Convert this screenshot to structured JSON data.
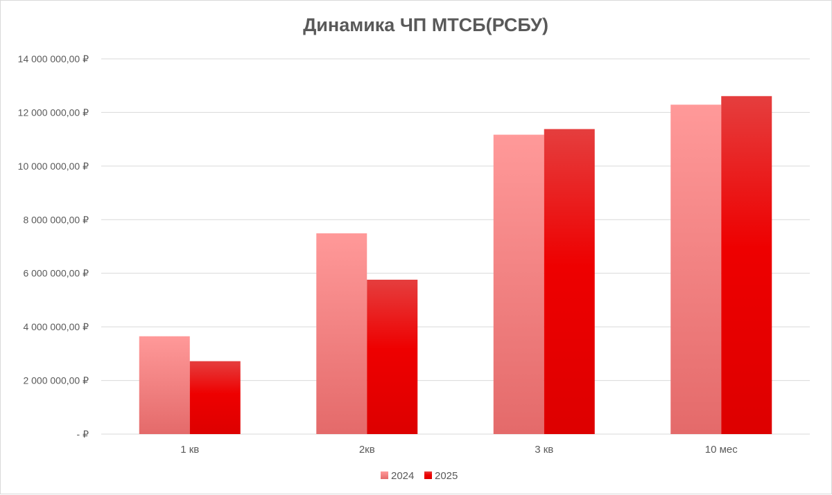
{
  "chart_data": {
    "type": "bar",
    "title": "Динамика ЧП МТСБ(РСБУ)",
    "xlabel": "",
    "ylabel": "",
    "categories": [
      "1 кв",
      "2кв",
      "3 кв",
      "10 мес"
    ],
    "series": [
      {
        "name": "2024",
        "values": [
          3650000,
          7490000,
          11170000,
          12290000
        ]
      },
      {
        "name": "2025",
        "values": [
          2720000,
          5760000,
          11380000,
          12610000
        ]
      }
    ],
    "ylim": [
      0,
      14000000
    ],
    "y_ticks": [
      {
        "value": 0,
        "label": "-  ₽"
      },
      {
        "value": 2000000,
        "label": "2 000 000,00 ₽"
      },
      {
        "value": 4000000,
        "label": "4 000 000,00 ₽"
      },
      {
        "value": 6000000,
        "label": "6 000 000,00 ₽"
      },
      {
        "value": 8000000,
        "label": "8 000 000,00 ₽"
      },
      {
        "value": 10000000,
        "label": "10 000 000,00 ₽"
      },
      {
        "value": 12000000,
        "label": "12 000 000,00 ₽"
      },
      {
        "value": 14000000,
        "label": "14 000 000,00 ₽"
      }
    ],
    "grid": true,
    "legend_position": "bottom",
    "colors": {
      "2024_top": "#ff9999",
      "2024_bottom": "#e46a6a",
      "2025_top": "#e53e3e",
      "2025_bottom": "#dd0000"
    }
  }
}
